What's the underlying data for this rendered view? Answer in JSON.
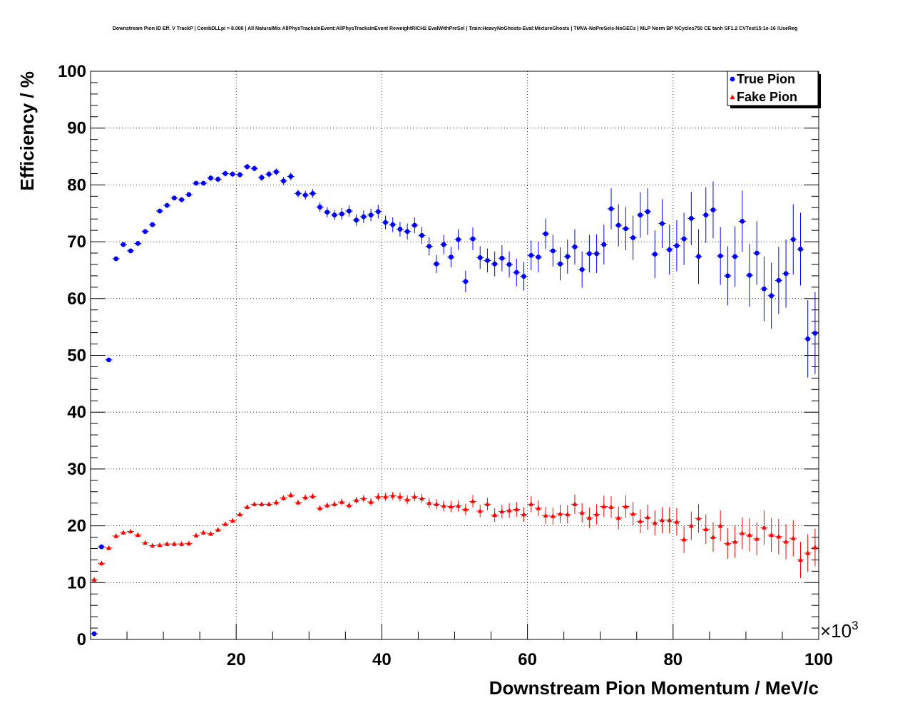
{
  "chart_data": {
    "type": "scatter",
    "title": "Downstream Pion ID Eff. V TrackP | CombDLLpi > 8.000 | All NaturalMix AllPhysTracksInEvent:AllPhysTracksInEvent ReweightRICH2 EvalWithPreSel | Train:HeavyNoGhosts-Eval:MixtureGhosts | TMVA-NoPreSels-NoGECs | MLP Norm BP NCycles750 CE tanh SF1.2 CVTest15:1e-16 !UseReg",
    "xlabel": "Downstream Pion Momentum / MeV/c",
    "ylabel": "Efficiency / %",
    "x_exponent_label": "×10",
    "x_exponent_power": "3",
    "xlim": [
      0,
      100
    ],
    "ylim": [
      0,
      100
    ],
    "x_ticks": [
      "20",
      "40",
      "60",
      "80",
      "100"
    ],
    "y_ticks": [
      "0",
      "10",
      "20",
      "30",
      "40",
      "50",
      "60",
      "70",
      "80",
      "90",
      "100"
    ],
    "x_units": "GeV/c (×10³ MeV/c)",
    "grid": true,
    "legend_position": "top-right",
    "series": [
      {
        "name": "True Pion",
        "color": "#0000ff",
        "marker": "circle",
        "points": [
          [
            0.5,
            1.0,
            0.3
          ],
          [
            1.5,
            16.3,
            0.4
          ],
          [
            2.5,
            49.2,
            0.4
          ],
          [
            3.5,
            67.0,
            0.4
          ],
          [
            4.5,
            69.5,
            0.4
          ],
          [
            5.5,
            68.4,
            0.4
          ],
          [
            6.5,
            69.7,
            0.4
          ],
          [
            7.5,
            71.8,
            0.4
          ],
          [
            8.5,
            73.0,
            0.4
          ],
          [
            9.5,
            75.4,
            0.4
          ],
          [
            10.5,
            76.4,
            0.4
          ],
          [
            11.5,
            77.7,
            0.4
          ],
          [
            12.5,
            77.4,
            0.4
          ],
          [
            13.5,
            78.3,
            0.4
          ],
          [
            14.5,
            80.3,
            0.4
          ],
          [
            15.5,
            80.3,
            0.4
          ],
          [
            16.5,
            81.2,
            0.5
          ],
          [
            17.5,
            81.0,
            0.5
          ],
          [
            18.5,
            82.0,
            0.5
          ],
          [
            19.5,
            81.9,
            0.5
          ],
          [
            20.5,
            81.8,
            0.5
          ],
          [
            21.5,
            83.2,
            0.5
          ],
          [
            22.5,
            82.9,
            0.5
          ],
          [
            23.5,
            81.3,
            0.6
          ],
          [
            24.5,
            81.9,
            0.6
          ],
          [
            25.5,
            82.3,
            0.6
          ],
          [
            26.5,
            80.7,
            0.7
          ],
          [
            27.5,
            81.5,
            0.7
          ],
          [
            28.5,
            78.5,
            0.7
          ],
          [
            29.5,
            78.2,
            0.8
          ],
          [
            30.5,
            78.5,
            0.8
          ],
          [
            31.5,
            76.1,
            0.8
          ],
          [
            32.5,
            75.2,
            0.9
          ],
          [
            33.5,
            74.7,
            0.9
          ],
          [
            34.5,
            74.9,
            1.0
          ],
          [
            35.5,
            75.4,
            1.0
          ],
          [
            36.5,
            73.8,
            1.0
          ],
          [
            37.5,
            74.4,
            1.1
          ],
          [
            38.5,
            74.7,
            1.1
          ],
          [
            39.5,
            75.3,
            1.2
          ],
          [
            40.5,
            73.4,
            1.2
          ],
          [
            41.5,
            73.0,
            1.3
          ],
          [
            42.5,
            72.2,
            1.3
          ],
          [
            43.5,
            71.8,
            1.4
          ],
          [
            44.5,
            72.9,
            1.4
          ],
          [
            45.5,
            71.1,
            1.5
          ],
          [
            46.5,
            69.2,
            1.6
          ],
          [
            47.5,
            66.1,
            1.6
          ],
          [
            48.5,
            69.5,
            1.7
          ],
          [
            49.5,
            67.3,
            1.8
          ],
          [
            50.5,
            70.4,
            1.8
          ],
          [
            51.5,
            63.0,
            1.9
          ],
          [
            52.5,
            70.5,
            2.0
          ],
          [
            53.5,
            67.2,
            2.0
          ],
          [
            54.5,
            66.7,
            2.1
          ],
          [
            55.5,
            66.1,
            2.2
          ],
          [
            56.5,
            67.1,
            2.3
          ],
          [
            57.5,
            66.0,
            2.3
          ],
          [
            58.5,
            64.6,
            2.4
          ],
          [
            59.5,
            63.9,
            2.5
          ],
          [
            60.5,
            67.6,
            2.6
          ],
          [
            61.5,
            67.3,
            2.7
          ],
          [
            62.5,
            71.4,
            2.7
          ],
          [
            63.5,
            68.4,
            2.8
          ],
          [
            64.5,
            66.1,
            2.9
          ],
          [
            65.5,
            67.4,
            3.0
          ],
          [
            66.5,
            69.1,
            3.1
          ],
          [
            67.5,
            65.1,
            3.2
          ],
          [
            68.5,
            67.9,
            3.3
          ],
          [
            69.5,
            67.9,
            3.4
          ],
          [
            70.5,
            69.5,
            3.5
          ],
          [
            71.5,
            75.8,
            3.6
          ],
          [
            72.5,
            72.9,
            3.7
          ],
          [
            73.5,
            72.3,
            3.8
          ],
          [
            74.5,
            70.7,
            3.9
          ],
          [
            75.5,
            74.7,
            4.0
          ],
          [
            76.5,
            75.3,
            4.1
          ],
          [
            77.5,
            67.8,
            4.2
          ],
          [
            78.5,
            73.2,
            4.3
          ],
          [
            79.5,
            68.6,
            4.4
          ],
          [
            80.5,
            69.3,
            4.5
          ],
          [
            81.5,
            70.5,
            4.6
          ],
          [
            82.5,
            74.1,
            4.7
          ],
          [
            83.5,
            67.4,
            4.8
          ],
          [
            84.5,
            74.7,
            4.9
          ],
          [
            85.5,
            75.6,
            5.0
          ],
          [
            86.5,
            67.5,
            5.1
          ],
          [
            87.5,
            64.0,
            5.2
          ],
          [
            88.5,
            67.4,
            5.3
          ],
          [
            89.5,
            73.6,
            5.4
          ],
          [
            90.5,
            64.1,
            5.5
          ],
          [
            91.5,
            68.0,
            5.6
          ],
          [
            92.5,
            61.7,
            5.7
          ],
          [
            93.5,
            60.5,
            5.8
          ],
          [
            94.5,
            63.2,
            5.9
          ],
          [
            95.5,
            64.4,
            6.0
          ],
          [
            96.5,
            70.4,
            6.2
          ],
          [
            97.5,
            68.7,
            6.4
          ],
          [
            98.5,
            52.9,
            6.8
          ],
          [
            99.5,
            53.9,
            7.2
          ]
        ]
      },
      {
        "name": "Fake Pion",
        "color": "#ff0000",
        "marker": "triangle",
        "points": [
          [
            0.5,
            10.5,
            0.4
          ],
          [
            1.5,
            13.4,
            0.4
          ],
          [
            2.5,
            16.1,
            0.4
          ],
          [
            3.5,
            18.2,
            0.4
          ],
          [
            4.5,
            18.8,
            0.4
          ],
          [
            5.5,
            19.0,
            0.4
          ],
          [
            6.5,
            18.4,
            0.4
          ],
          [
            7.5,
            17.0,
            0.4
          ],
          [
            8.5,
            16.5,
            0.4
          ],
          [
            9.5,
            16.6,
            0.4
          ],
          [
            10.5,
            16.8,
            0.4
          ],
          [
            11.5,
            16.8,
            0.4
          ],
          [
            12.5,
            16.8,
            0.4
          ],
          [
            13.5,
            16.9,
            0.4
          ],
          [
            14.5,
            18.3,
            0.4
          ],
          [
            15.5,
            18.8,
            0.4
          ],
          [
            16.5,
            18.6,
            0.4
          ],
          [
            17.5,
            19.3,
            0.4
          ],
          [
            18.5,
            20.3,
            0.4
          ],
          [
            19.5,
            20.9,
            0.4
          ],
          [
            20.5,
            22.0,
            0.4
          ],
          [
            21.5,
            23.3,
            0.4
          ],
          [
            22.5,
            23.8,
            0.4
          ],
          [
            23.5,
            23.8,
            0.4
          ],
          [
            24.5,
            23.8,
            0.4
          ],
          [
            25.5,
            24.1,
            0.5
          ],
          [
            26.5,
            24.9,
            0.5
          ],
          [
            27.5,
            25.4,
            0.5
          ],
          [
            28.5,
            24.1,
            0.5
          ],
          [
            29.5,
            25.0,
            0.5
          ],
          [
            30.5,
            25.2,
            0.5
          ],
          [
            31.5,
            23.1,
            0.5
          ],
          [
            32.5,
            23.6,
            0.5
          ],
          [
            33.5,
            23.8,
            0.6
          ],
          [
            34.5,
            24.2,
            0.6
          ],
          [
            35.5,
            23.6,
            0.6
          ],
          [
            36.5,
            24.5,
            0.6
          ],
          [
            37.5,
            24.8,
            0.6
          ],
          [
            38.5,
            24.2,
            0.7
          ],
          [
            39.5,
            25.1,
            0.7
          ],
          [
            40.5,
            25.1,
            0.7
          ],
          [
            41.5,
            25.3,
            0.7
          ],
          [
            42.5,
            25.1,
            0.8
          ],
          [
            43.5,
            24.6,
            0.8
          ],
          [
            44.5,
            25.1,
            0.8
          ],
          [
            45.5,
            24.8,
            0.8
          ],
          [
            46.5,
            24.0,
            0.9
          ],
          [
            47.5,
            23.8,
            0.9
          ],
          [
            48.5,
            23.5,
            0.9
          ],
          [
            49.5,
            23.4,
            1.0
          ],
          [
            50.5,
            23.5,
            1.0
          ],
          [
            51.5,
            22.9,
            1.0
          ],
          [
            52.5,
            24.3,
            1.1
          ],
          [
            53.5,
            22.6,
            1.1
          ],
          [
            54.5,
            23.8,
            1.1
          ],
          [
            55.5,
            21.9,
            1.2
          ],
          [
            56.5,
            22.5,
            1.2
          ],
          [
            57.5,
            22.7,
            1.3
          ],
          [
            58.5,
            22.9,
            1.3
          ],
          [
            59.5,
            22.0,
            1.3
          ],
          [
            60.5,
            23.8,
            1.4
          ],
          [
            61.5,
            23.1,
            1.4
          ],
          [
            62.5,
            21.8,
            1.5
          ],
          [
            63.5,
            21.7,
            1.5
          ],
          [
            64.5,
            22.1,
            1.6
          ],
          [
            65.5,
            22.0,
            1.6
          ],
          [
            66.5,
            23.8,
            1.7
          ],
          [
            67.5,
            22.3,
            1.7
          ],
          [
            68.5,
            21.4,
            1.8
          ],
          [
            69.5,
            22.0,
            1.8
          ],
          [
            70.5,
            23.4,
            1.9
          ],
          [
            71.5,
            23.3,
            1.9
          ],
          [
            72.5,
            21.4,
            2.0
          ],
          [
            73.5,
            23.4,
            2.0
          ],
          [
            74.5,
            22.1,
            2.1
          ],
          [
            75.5,
            20.8,
            2.1
          ],
          [
            76.5,
            21.5,
            2.2
          ],
          [
            77.5,
            20.5,
            2.2
          ],
          [
            78.5,
            21.0,
            2.3
          ],
          [
            79.5,
            21.0,
            2.3
          ],
          [
            80.5,
            20.7,
            2.4
          ],
          [
            81.5,
            17.6,
            2.4
          ],
          [
            82.5,
            20.0,
            2.5
          ],
          [
            83.5,
            21.3,
            2.5
          ],
          [
            84.5,
            19.4,
            2.6
          ],
          [
            85.5,
            18.0,
            2.6
          ],
          [
            86.5,
            20.0,
            2.7
          ],
          [
            87.5,
            16.9,
            2.7
          ],
          [
            88.5,
            17.2,
            2.8
          ],
          [
            89.5,
            18.7,
            2.8
          ],
          [
            90.5,
            18.4,
            2.9
          ],
          [
            91.5,
            17.7,
            2.9
          ],
          [
            92.5,
            19.7,
            3.0
          ],
          [
            93.5,
            18.4,
            3.0
          ],
          [
            94.5,
            18.1,
            3.1
          ],
          [
            95.5,
            17.2,
            3.1
          ],
          [
            96.5,
            17.8,
            3.2
          ],
          [
            97.5,
            14.0,
            3.2
          ],
          [
            98.5,
            15.2,
            3.3
          ],
          [
            99.5,
            16.2,
            3.3
          ]
        ]
      }
    ]
  }
}
